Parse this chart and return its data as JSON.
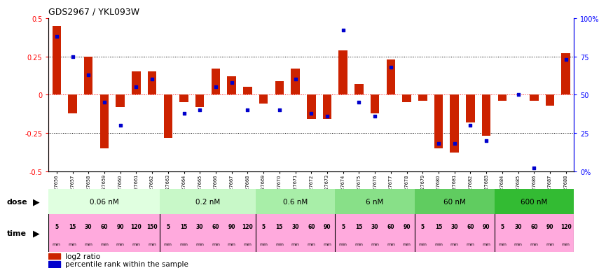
{
  "title": "GDS2967 / YKL093W",
  "samples": [
    "GSM227656",
    "GSM227657",
    "GSM227658",
    "GSM227659",
    "GSM227660",
    "GSM227661",
    "GSM227662",
    "GSM227663",
    "GSM227664",
    "GSM227665",
    "GSM227666",
    "GSM227667",
    "GSM227668",
    "GSM227669",
    "GSM227670",
    "GSM227671",
    "GSM227672",
    "GSM227673",
    "GSM227674",
    "GSM227675",
    "GSM227676",
    "GSM227677",
    "GSM227678",
    "GSM227679",
    "GSM227680",
    "GSM227681",
    "GSM227682",
    "GSM227683",
    "GSM227684",
    "GSM227685",
    "GSM227686",
    "GSM227687",
    "GSM227688"
  ],
  "log2_ratio": [
    0.45,
    -0.12,
    0.25,
    -0.35,
    -0.08,
    0.15,
    0.15,
    -0.28,
    -0.05,
    -0.08,
    0.17,
    0.12,
    0.05,
    -0.06,
    0.09,
    0.17,
    -0.16,
    -0.16,
    0.29,
    0.07,
    -0.12,
    0.23,
    -0.05,
    -0.04,
    -0.35,
    -0.38,
    -0.18,
    -0.27,
    -0.04,
    0.0,
    -0.04,
    -0.07,
    0.27
  ],
  "percentile": [
    88,
    75,
    63,
    45,
    30,
    55,
    60,
    null,
    38,
    40,
    55,
    58,
    40,
    null,
    40,
    60,
    38,
    36,
    92,
    45,
    36,
    68,
    null,
    null,
    18,
    18,
    30,
    20,
    null,
    50,
    2,
    null,
    73
  ],
  "doses": [
    {
      "label": "0.06 nM",
      "start": 0,
      "end": 7,
      "color": "#e0ffe0"
    },
    {
      "label": "0.2 nM",
      "start": 7,
      "end": 13,
      "color": "#c8f8c8"
    },
    {
      "label": "0.6 nM",
      "start": 13,
      "end": 18,
      "color": "#a8eea8"
    },
    {
      "label": "6 nM",
      "start": 18,
      "end": 23,
      "color": "#88e088"
    },
    {
      "label": "60 nM",
      "start": 23,
      "end": 28,
      "color": "#60cc60"
    },
    {
      "label": "600 nM",
      "start": 28,
      "end": 33,
      "color": "#33bb33"
    }
  ],
  "bar_color": "#cc2200",
  "dot_color": "#0000cc",
  "time_bg": "#ffaadd",
  "dose_boundaries": [
    7,
    13,
    18,
    23,
    28
  ],
  "all_times": [
    "5",
    "15",
    "30",
    "60",
    "90",
    "120",
    "150",
    "5",
    "15",
    "30",
    "60",
    "90",
    "120",
    "5",
    "15",
    "30",
    "60",
    "90",
    "5",
    "15",
    "30",
    "60",
    "90",
    "5",
    "15",
    "30",
    "60",
    "90",
    "5",
    "30",
    "60",
    "90",
    "120"
  ],
  "ylim": [
    -0.5,
    0.5
  ],
  "yticks_left": [
    -0.5,
    -0.25,
    0.0,
    0.25,
    0.5
  ]
}
